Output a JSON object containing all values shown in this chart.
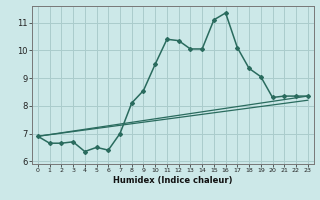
{
  "xlabel": "Humidex (Indice chaleur)",
  "ylabel": "",
  "bg_color": "#cce8e8",
  "grid_color": "#aacccc",
  "line_color": "#2a6b5e",
  "xlim": [
    -0.5,
    23.5
  ],
  "ylim": [
    5.9,
    11.6
  ],
  "xticks": [
    0,
    1,
    2,
    3,
    4,
    5,
    6,
    7,
    8,
    9,
    10,
    11,
    12,
    13,
    14,
    15,
    16,
    17,
    18,
    19,
    20,
    21,
    22,
    23
  ],
  "yticks": [
    6,
    7,
    8,
    9,
    10,
    11
  ],
  "line1_x": [
    0,
    1,
    2,
    3,
    4,
    5,
    6,
    7,
    8,
    9,
    10,
    11,
    12,
    13,
    14,
    15,
    16,
    17,
    18,
    19,
    20,
    21,
    22,
    23
  ],
  "line1_y": [
    6.9,
    6.65,
    6.65,
    6.7,
    6.35,
    6.5,
    6.4,
    7.0,
    8.1,
    8.55,
    9.5,
    10.4,
    10.35,
    10.05,
    10.05,
    11.1,
    11.35,
    10.1,
    9.35,
    9.05,
    8.3,
    8.35,
    8.35,
    8.35
  ],
  "line2_x": [
    0,
    23
  ],
  "line2_y": [
    6.9,
    8.35
  ],
  "line3_x": [
    0,
    23
  ],
  "line3_y": [
    6.9,
    8.2
  ],
  "xlabel_fontsize": 6,
  "xlabel_bold": true,
  "xtick_fontsize": 4.5,
  "ytick_fontsize": 6.0
}
